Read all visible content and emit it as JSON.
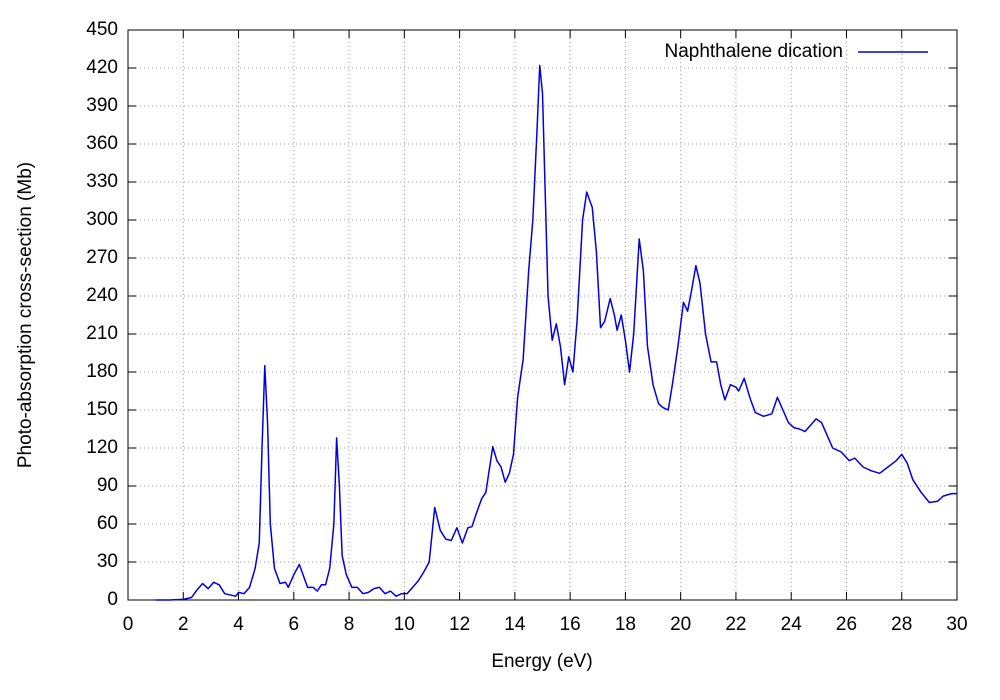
{
  "chart_data": {
    "type": "line",
    "xlabel": "Energy (eV)",
    "ylabel": "Photo-absorption cross-section (Mb)",
    "xlim": [
      0,
      30
    ],
    "ylim": [
      0,
      450
    ],
    "xticks": [
      0,
      2,
      4,
      6,
      8,
      10,
      12,
      14,
      16,
      18,
      20,
      22,
      24,
      26,
      28,
      30
    ],
    "yticks": [
      0,
      30,
      60,
      90,
      120,
      150,
      180,
      210,
      240,
      270,
      300,
      330,
      360,
      390,
      420,
      450
    ],
    "grid": true,
    "legend": "top-right",
    "x": [
      1.0,
      1.5,
      2.0,
      2.3,
      2.5,
      2.7,
      2.9,
      3.1,
      3.3,
      3.5,
      3.7,
      3.9,
      4.0,
      4.2,
      4.4,
      4.6,
      4.75,
      4.85,
      4.95,
      5.05,
      5.15,
      5.3,
      5.5,
      5.7,
      5.8,
      6.0,
      6.2,
      6.3,
      6.5,
      6.7,
      6.85,
      7.0,
      7.15,
      7.3,
      7.45,
      7.55,
      7.65,
      7.75,
      7.9,
      8.1,
      8.3,
      8.5,
      8.7,
      8.9,
      9.1,
      9.3,
      9.5,
      9.7,
      9.9,
      10.1,
      10.3,
      10.5,
      10.7,
      10.9,
      11.1,
      11.3,
      11.5,
      11.7,
      11.9,
      12.1,
      12.3,
      12.45,
      12.6,
      12.8,
      12.95,
      13.2,
      13.35,
      13.5,
      13.65,
      13.8,
      13.95,
      14.1,
      14.3,
      14.5,
      14.65,
      14.8,
      14.9,
      15.0,
      15.1,
      15.2,
      15.35,
      15.5,
      15.65,
      15.8,
      15.95,
      16.1,
      16.25,
      16.45,
      16.6,
      16.8,
      16.95,
      17.1,
      17.25,
      17.45,
      17.6,
      17.7,
      17.85,
      18.0,
      18.15,
      18.3,
      18.5,
      18.65,
      18.8,
      19.0,
      19.2,
      19.35,
      19.55,
      19.7,
      19.9,
      20.1,
      20.25,
      20.4,
      20.55,
      20.7,
      20.9,
      21.1,
      21.3,
      21.45,
      21.6,
      21.8,
      22.0,
      22.1,
      22.3,
      22.5,
      22.7,
      23.0,
      23.3,
      23.5,
      23.7,
      23.9,
      24.1,
      24.3,
      24.5,
      24.7,
      24.9,
      25.1,
      25.3,
      25.5,
      25.8,
      26.1,
      26.3,
      26.6,
      26.9,
      27.2,
      27.5,
      27.8,
      28.0,
      28.2,
      28.4,
      28.7,
      29.0,
      29.3,
      29.5,
      29.8,
      30.0
    ],
    "series": [
      {
        "name": "Naphthalene dication",
        "color": "#0000e0",
        "values": [
          0,
          0,
          0.5,
          2,
          8,
          13,
          9,
          14,
          12,
          5,
          4,
          3,
          6,
          5,
          10,
          25,
          45,
          120,
          185,
          140,
          60,
          25,
          13,
          14,
          10,
          20,
          28,
          22,
          10,
          10,
          7,
          12,
          12,
          25,
          60,
          128,
          90,
          35,
          20,
          10,
          10,
          5,
          6,
          9,
          10,
          5,
          7,
          3,
          5,
          5,
          10,
          15,
          22,
          30,
          73,
          55,
          48,
          47,
          57,
          45,
          57,
          58,
          68,
          80,
          85,
          121,
          110,
          105,
          93,
          100,
          115,
          160,
          190,
          260,
          300,
          370,
          422,
          400,
          320,
          240,
          205,
          218,
          200,
          170,
          192,
          180,
          220,
          300,
          322,
          310,
          275,
          215,
          220,
          238,
          225,
          213,
          225,
          205,
          180,
          210,
          285,
          260,
          200,
          170,
          155,
          152,
          150,
          170,
          200,
          235,
          228,
          245,
          264,
          250,
          210,
          188,
          188,
          170,
          158,
          170,
          168,
          165,
          175,
          160,
          148,
          145,
          147,
          160,
          150,
          140,
          136,
          135,
          133,
          138,
          143,
          140,
          130,
          120,
          117,
          110,
          112,
          105,
          102,
          100,
          105,
          110,
          115,
          108,
          95,
          85,
          77,
          78,
          82,
          84,
          84
        ]
      }
    ]
  }
}
